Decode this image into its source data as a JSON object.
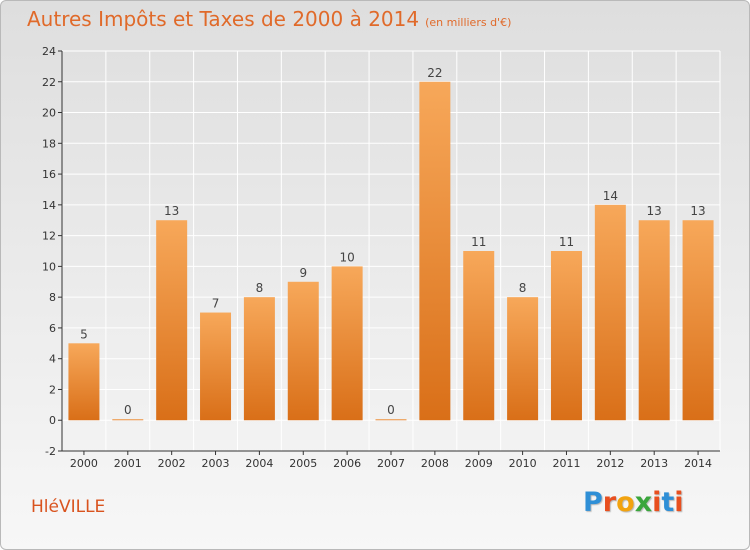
{
  "header": {
    "title": "Autres Impôts et Taxes de 2000 à 2014",
    "unit": "(en milliers d'€)"
  },
  "footer": {
    "commune": "HléVILLE",
    "logo": {
      "letters": [
        "P",
        "r",
        "o",
        "x",
        "i",
        "t",
        "i"
      ],
      "colors": [
        "#2f8fd6",
        "#e84f1f",
        "#f2a30f",
        "#3aa63c",
        "#e84f1f",
        "#2f8fd6",
        "#e84f1f"
      ]
    }
  },
  "chart_data": {
    "type": "bar",
    "title": "Autres Impôts et Taxes de 2000 à 2014",
    "subtitle": "(en milliers d'€)",
    "xlabel": "",
    "ylabel": "",
    "categories": [
      "2000",
      "2001",
      "2002",
      "2003",
      "2004",
      "2005",
      "2006",
      "2007",
      "2008",
      "2009",
      "2010",
      "2011",
      "2012",
      "2013",
      "2014"
    ],
    "values": [
      5,
      0,
      13,
      7,
      8,
      9,
      10,
      0,
      22,
      11,
      8,
      11,
      14,
      13,
      13
    ],
    "ylim": [
      -2,
      24
    ],
    "yticks": [
      -2,
      0,
      2,
      4,
      6,
      8,
      10,
      12,
      14,
      16,
      18,
      20,
      22,
      24
    ],
    "grid": true,
    "legend": "none",
    "colors": {
      "bar_top": "#f7a85a",
      "bar_bottom": "#d96f18",
      "grid": "#ffffff",
      "axis": "#333333"
    }
  }
}
